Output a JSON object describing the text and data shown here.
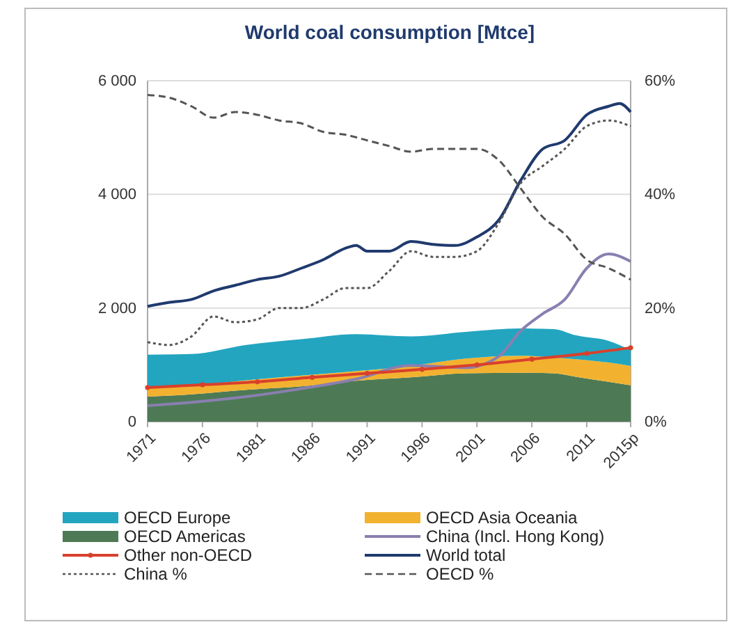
{
  "chart_data": {
    "type": "line",
    "title": "World coal consumption [Mtce]",
    "x": [
      1971,
      1975,
      1980,
      1985,
      1990,
      1995,
      2000,
      2005,
      2008,
      2010,
      2013,
      2015
    ],
    "xlim": [
      1971,
      2015
    ],
    "xticks": [
      1971,
      1976,
      1981,
      1986,
      1991,
      1996,
      2001,
      2006,
      2011,
      {
        "value": 2015,
        "label": "2015p"
      }
    ],
    "ylim": [
      0,
      6000
    ],
    "yticks": [
      0,
      {
        "value": 2000,
        "label": "2 000"
      },
      {
        "value": 4000,
        "label": "4 000"
      },
      {
        "value": 6000,
        "label": "6 000"
      }
    ],
    "y2lim": [
      0,
      60
    ],
    "y2ticks": [
      {
        "value": 0,
        "label": "0%"
      },
      {
        "value": 20,
        "label": "20%"
      },
      {
        "value": 40,
        "label": "40%"
      },
      {
        "value": 60,
        "label": "60%"
      }
    ],
    "grid": "y",
    "legend": "bottom",
    "stacked": true,
    "series": [
      {
        "name": "OECD Americas",
        "type": "area",
        "color": "#4d7a55",
        "values": [
          440,
          480,
          560,
          620,
          720,
          780,
          850,
          860,
          850,
          790,
          700,
          640
        ]
      },
      {
        "name": "OECD Asia Oceania",
        "type": "area",
        "color": "#f2b230",
        "values": [
          150,
          150,
          170,
          190,
          170,
          200,
          260,
          300,
          280,
          310,
          340,
          340
        ]
      },
      {
        "name": "OECD Europe",
        "type": "area",
        "color": "#23a5c0",
        "values": [
          590,
          560,
          620,
          640,
          650,
          520,
          470,
          480,
          500,
          420,
          380,
          280
        ]
      },
      {
        "name": "China (Incl. Hong Kong)",
        "color": "#8a7fb0",
        "x": [
          1971,
          1975,
          1980,
          1985,
          1990,
          1995,
          2000,
          2003,
          2005,
          2007,
          2009,
          2011,
          2013,
          2015
        ],
        "values": [
          280,
          340,
          440,
          580,
          750,
          990,
          950,
          1150,
          1600,
          1900,
          2150,
          2700,
          2950,
          2820
        ]
      },
      {
        "name": "Other non-OECD",
        "color": "#d9402c",
        "marker": "circle",
        "x": [
          1971,
          1976,
          1981,
          1986,
          1991,
          1996,
          2001,
          2006,
          2011,
          2015
        ],
        "values": [
          600,
          650,
          700,
          780,
          850,
          920,
          1000,
          1100,
          1200,
          1300
        ]
      },
      {
        "name": "World total",
        "color": "#1f3a6e",
        "x": [
          1971,
          1973,
          1975,
          1977,
          1979,
          1981,
          1983,
          1985,
          1987,
          1989,
          1990,
          1991,
          1993,
          1995,
          1997,
          1999,
          2001,
          2003,
          2005,
          2007,
          2009,
          2011,
          2013,
          2014,
          2015
        ],
        "values": [
          2030,
          2100,
          2150,
          2300,
          2400,
          2500,
          2560,
          2700,
          2850,
          3050,
          3100,
          3000,
          3000,
          3170,
          3120,
          3100,
          3250,
          3550,
          4250,
          4800,
          4950,
          5400,
          5550,
          5600,
          5450
        ]
      },
      {
        "name": "China %",
        "axis": "y2",
        "line_style": "dotted",
        "color": "#555555",
        "x": [
          1971,
          1973,
          1975,
          1977,
          1979,
          1981,
          1983,
          1985,
          1987,
          1989,
          1991,
          1993,
          1995,
          1997,
          1999,
          2001,
          2003,
          2005,
          2007,
          2009,
          2011,
          2013,
          2015
        ],
        "values": [
          14,
          13.5,
          15,
          18.5,
          17.5,
          18,
          20,
          20,
          21.5,
          23.5,
          23.5,
          26.5,
          30,
          29,
          29,
          30,
          35,
          42,
          45,
          48,
          52,
          53,
          52
        ]
      },
      {
        "name": "OECD %",
        "axis": "y2",
        "line_style": "dashed",
        "color": "#555555",
        "x": [
          1971,
          1973,
          1975,
          1977,
          1979,
          1981,
          1983,
          1985,
          1987,
          1989,
          1991,
          1993,
          1995,
          1997,
          1999,
          2001,
          2003,
          2005,
          2007,
          2009,
          2011,
          2013,
          2015
        ],
        "values": [
          57.5,
          57,
          55.5,
          53.5,
          54.5,
          54,
          53,
          52.5,
          51,
          50.5,
          49.5,
          48.5,
          47.5,
          48,
          48,
          48,
          46,
          41,
          36,
          33,
          28.5,
          27,
          25
        ]
      }
    ]
  }
}
